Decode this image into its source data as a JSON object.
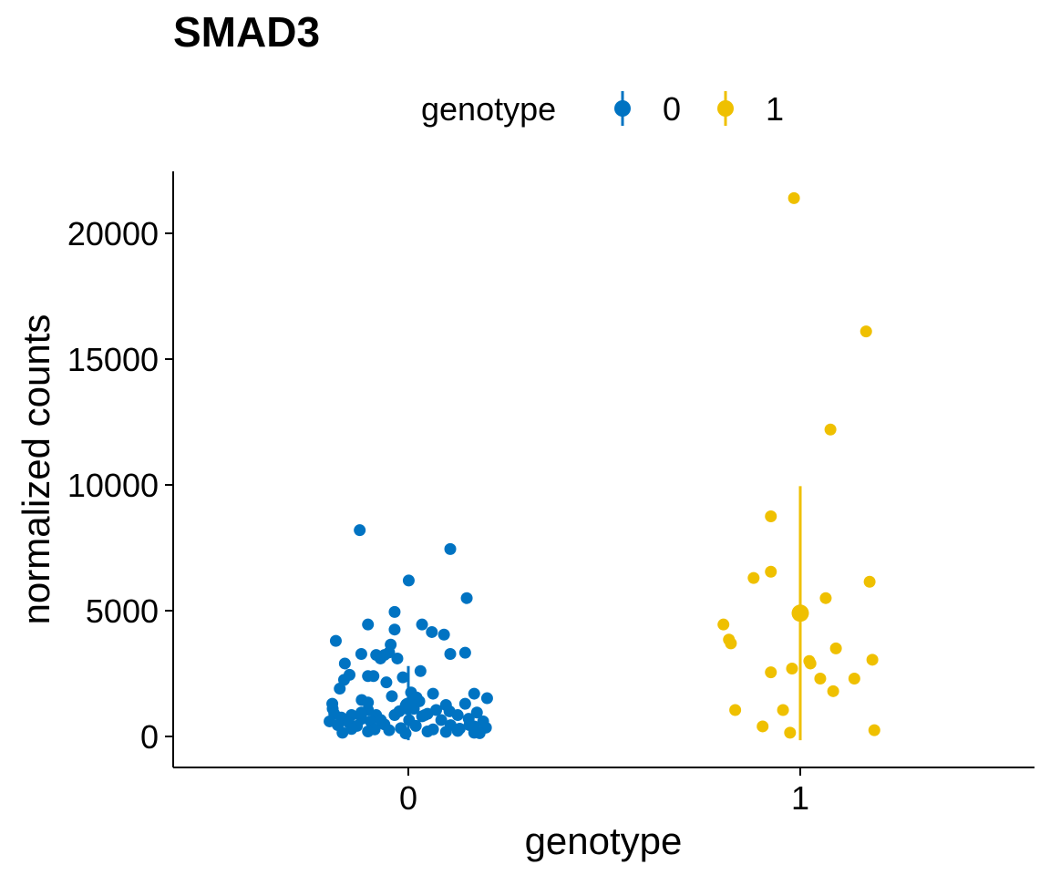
{
  "chart_data": {
    "type": "scatter",
    "title": "SMAD3",
    "xlabel": "genotype",
    "ylabel": "normalized counts",
    "categories": [
      "0",
      "1"
    ],
    "ylim": [
      -1200,
      22500
    ],
    "yticks": [
      0,
      5000,
      10000,
      15000,
      20000
    ],
    "grid": false,
    "legend": {
      "title": "genotype",
      "position": "top",
      "entries": [
        "0",
        "1"
      ]
    },
    "colors": {
      "0": "#0073C2",
      "1": "#EFC000"
    },
    "series": [
      {
        "name": "0",
        "category": "0",
        "summary": {
          "mean": 1200,
          "ymin": -150,
          "ymax": 2800
        },
        "points": [
          [
            -0.124,
            8200
          ],
          [
            0.107,
            7450
          ],
          [
            0.001,
            6200
          ],
          [
            0.149,
            5500
          ],
          [
            -0.035,
            4950
          ],
          [
            0.035,
            4450
          ],
          [
            -0.103,
            4450
          ],
          [
            0.06,
            4150
          ],
          [
            0.091,
            4050
          ],
          [
            -0.035,
            4250
          ],
          [
            -0.185,
            3800
          ],
          [
            0.107,
            3280
          ],
          [
            0.145,
            3330
          ],
          [
            -0.12,
            3280
          ],
          [
            -0.082,
            3240
          ],
          [
            -0.049,
            3340
          ],
          [
            -0.061,
            3240
          ],
          [
            -0.045,
            3650
          ],
          [
            -0.162,
            2900
          ],
          [
            -0.071,
            3100
          ],
          [
            -0.028,
            3100
          ],
          [
            0.031,
            2600
          ],
          [
            -0.15,
            2450
          ],
          [
            -0.103,
            2400
          ],
          [
            -0.089,
            2400
          ],
          [
            -0.164,
            2250
          ],
          [
            -0.056,
            2150
          ],
          [
            -0.014,
            2350
          ],
          [
            -0.175,
            1900
          ],
          [
            0.007,
            1750
          ],
          [
            0.063,
            1700
          ],
          [
            0.168,
            1700
          ],
          [
            -0.119,
            1450
          ],
          [
            -0.042,
            1600
          ],
          [
            0.021,
            1550
          ],
          [
            0.201,
            1520
          ],
          [
            -0.194,
            1300
          ],
          [
            0.145,
            1300
          ],
          [
            0.096,
            1250
          ],
          [
            -0.193,
            1100
          ],
          [
            -0.103,
            1050
          ],
          [
            0.014,
            1100
          ],
          [
            0.071,
            1050
          ],
          [
            0.105,
            1000
          ],
          [
            0.175,
            950
          ],
          [
            -0.189,
            900
          ],
          [
            -0.145,
            850
          ],
          [
            -0.082,
            850
          ],
          [
            -0.035,
            850
          ],
          [
            0.049,
            900
          ],
          [
            0.126,
            850
          ],
          [
            -0.171,
            750
          ],
          [
            -0.119,
            700
          ],
          [
            0.035,
            800
          ],
          [
            0.154,
            700
          ],
          [
            -0.201,
            600
          ],
          [
            -0.152,
            550
          ],
          [
            -0.096,
            600
          ],
          [
            0.002,
            650
          ],
          [
            0.084,
            650
          ],
          [
            0.191,
            600
          ],
          [
            -0.18,
            450
          ],
          [
            -0.131,
            420
          ],
          [
            -0.061,
            480
          ],
          [
            0.019,
            420
          ],
          [
            0.108,
            450
          ],
          [
            0.168,
            400
          ],
          [
            -0.145,
            300
          ],
          [
            -0.086,
            280
          ],
          [
            -0.019,
            330
          ],
          [
            0.063,
            280
          ],
          [
            0.131,
            310
          ],
          [
            0.198,
            350
          ],
          [
            -0.103,
            200
          ],
          [
            -0.049,
            250
          ],
          [
            0.049,
            200
          ],
          [
            0.096,
            180
          ],
          [
            -0.168,
            150
          ],
          [
            -0.007,
            120
          ],
          [
            0.168,
            150
          ],
          [
            0.182,
            130
          ],
          [
            0.126,
            220
          ],
          [
            -0.103,
            1350
          ],
          [
            -0.023,
            1000
          ],
          [
            0.028,
            1400
          ],
          [
            0.156,
            450
          ],
          [
            -0.12,
            950
          ],
          [
            0.175,
            200
          ],
          [
            0.042,
            850
          ],
          [
            -0.07,
            650
          ]
        ]
      },
      {
        "name": "1",
        "category": "1",
        "summary": {
          "mean": 4900,
          "ymin": -150,
          "ymax": 9950
        },
        "points": [
          [
            -0.016,
            21400
          ],
          [
            0.168,
            16100
          ],
          [
            0.077,
            12200
          ],
          [
            -0.075,
            8750
          ],
          [
            -0.075,
            6550
          ],
          [
            -0.119,
            6300
          ],
          [
            0.177,
            6150
          ],
          [
            0.065,
            5500
          ],
          [
            -0.196,
            4450
          ],
          [
            -0.182,
            3850
          ],
          [
            -0.177,
            3700
          ],
          [
            0.091,
            3500
          ],
          [
            0.184,
            3050
          ],
          [
            0.023,
            3000
          ],
          [
            0.026,
            2900
          ],
          [
            -0.021,
            2700
          ],
          [
            -0.075,
            2550
          ],
          [
            0.051,
            2300
          ],
          [
            0.138,
            2300
          ],
          [
            0.084,
            1800
          ],
          [
            -0.044,
            1050
          ],
          [
            -0.166,
            1050
          ],
          [
            -0.096,
            400
          ],
          [
            0.189,
            250
          ],
          [
            -0.026,
            150
          ]
        ]
      }
    ]
  }
}
